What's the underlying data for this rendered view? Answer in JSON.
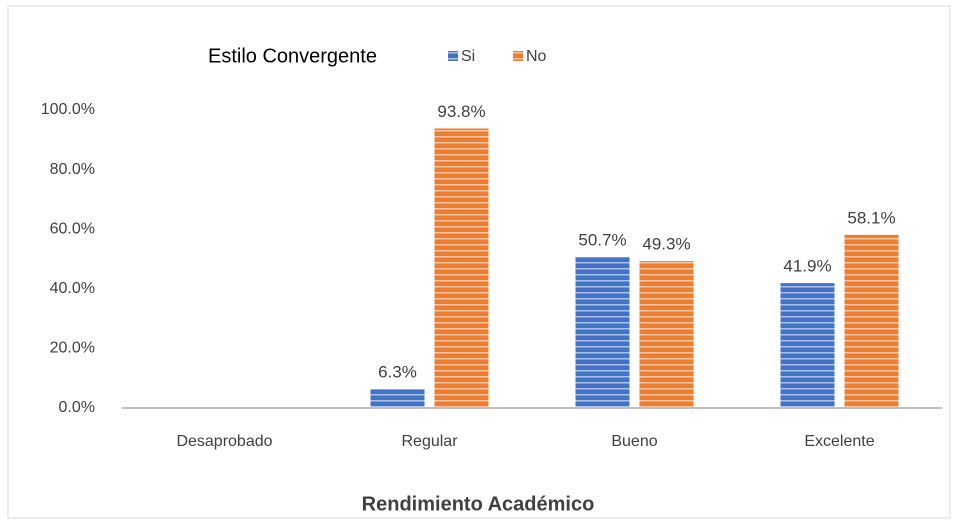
{
  "chart_data": {
    "type": "bar",
    "legend_title": "Estilo Convergente",
    "x_label": "Rendimiento Académico",
    "categories": [
      "Desaprobado",
      "Regular",
      "Bueno",
      "Excelente"
    ],
    "series": [
      {
        "name": "Si",
        "color": "#4472c4",
        "values": [
          null,
          6.3,
          50.7,
          41.9
        ],
        "value_labels": [
          null,
          "6.3%",
          "50.7%",
          "41.9%"
        ]
      },
      {
        "name": "No",
        "color": "#ed7d31",
        "values": [
          null,
          93.8,
          49.3,
          58.1
        ],
        "value_labels": [
          null,
          "93.8%",
          "49.3%",
          "58.1%"
        ]
      }
    ],
    "ylim": [
      0,
      100
    ],
    "yticks": [
      {
        "value": 0,
        "label": "0.0%"
      },
      {
        "value": 20,
        "label": "20.0%"
      },
      {
        "value": 40,
        "label": "40.0%"
      },
      {
        "value": 60,
        "label": "60.0%"
      },
      {
        "value": 80,
        "label": "80.0%"
      },
      {
        "value": 100,
        "label": "100.0%"
      }
    ],
    "grid": false,
    "legend": "top"
  }
}
